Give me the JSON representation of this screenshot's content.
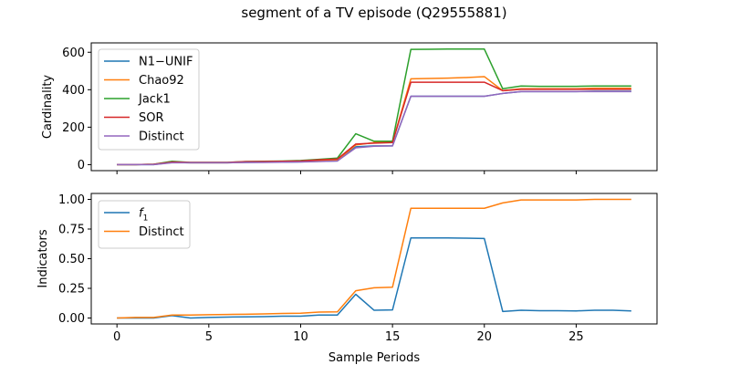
{
  "figure": {
    "title": "segment of a TV episode (Q29555881)",
    "colors": {
      "blue": "#1f77b4",
      "orange": "#ff7f0e",
      "green": "#2ca02c",
      "red": "#d62728",
      "purple": "#9467bd"
    }
  },
  "chart_data": [
    {
      "type": "line",
      "xlabel": "",
      "ylabel": "Cardinality",
      "xlim": [
        -1.4,
        29.4
      ],
      "ylim": [
        -32,
        650
      ],
      "xticks": [
        0,
        5,
        10,
        15,
        20,
        25
      ],
      "xtick_labels_visible": false,
      "yticks": [
        0,
        200,
        400,
        600
      ],
      "ytick_labels": [
        "0",
        "200",
        "400",
        "600"
      ],
      "legend_position": "upper left",
      "x": [
        0,
        1,
        2,
        3,
        4,
        5,
        6,
        7,
        8,
        9,
        10,
        11,
        12,
        13,
        14,
        15,
        16,
        17,
        18,
        19,
        20,
        21,
        22,
        23,
        24,
        25,
        26,
        27,
        28
      ],
      "series": [
        {
          "name": "N1−UNIF",
          "color": "#1f77b4",
          "values": [
            0,
            0,
            0,
            12,
            10,
            10,
            10,
            12,
            13,
            13,
            15,
            18,
            20,
            95,
            100,
            100,
            365,
            365,
            365,
            365,
            365,
            380,
            390,
            390,
            390,
            390,
            392,
            392,
            392
          ]
        },
        {
          "name": "Chao92",
          "color": "#ff7f0e",
          "values": [
            0,
            0,
            2,
            12,
            10,
            10,
            10,
            13,
            14,
            15,
            17,
            22,
            25,
            105,
            118,
            118,
            458,
            460,
            462,
            465,
            470,
            395,
            405,
            405,
            405,
            405,
            408,
            408,
            408
          ]
        },
        {
          "name": "Jack1",
          "color": "#2ca02c",
          "values": [
            0,
            0,
            2,
            18,
            12,
            12,
            12,
            17,
            18,
            19,
            22,
            28,
            35,
            165,
            125,
            125,
            615,
            616,
            617,
            617,
            617,
            405,
            420,
            418,
            418,
            418,
            420,
            420,
            420
          ]
        },
        {
          "name": "SOR",
          "color": "#d62728",
          "values": [
            0,
            0,
            2,
            14,
            12,
            12,
            12,
            16,
            17,
            18,
            20,
            26,
            30,
            110,
            115,
            118,
            440,
            440,
            440,
            440,
            440,
            395,
            402,
            402,
            402,
            402,
            402,
            402,
            402
          ]
        },
        {
          "name": "Distinct",
          "color": "#9467bd",
          "values": [
            0,
            0,
            0,
            10,
            10,
            10,
            10,
            12,
            12,
            13,
            14,
            17,
            20,
            90,
            98,
            100,
            365,
            365,
            365,
            365,
            365,
            380,
            390,
            390,
            390,
            390,
            390,
            390,
            390
          ]
        }
      ]
    },
    {
      "type": "line",
      "xlabel": "Sample Periods",
      "ylabel": "Indicators",
      "xlim": [
        -1.4,
        29.4
      ],
      "ylim": [
        -0.05,
        1.05
      ],
      "xticks": [
        0,
        5,
        10,
        15,
        20,
        25
      ],
      "xtick_labels": [
        "0",
        "5",
        "10",
        "15",
        "20",
        "25"
      ],
      "yticks": [
        0.0,
        0.25,
        0.5,
        0.75,
        1.0
      ],
      "ytick_labels": [
        "0.00",
        "0.25",
        "0.50",
        "0.75",
        "1.00"
      ],
      "legend_position": "upper left",
      "x": [
        0,
        1,
        2,
        3,
        4,
        5,
        6,
        7,
        8,
        9,
        10,
        11,
        12,
        13,
        14,
        15,
        16,
        17,
        18,
        19,
        20,
        21,
        22,
        23,
        24,
        25,
        26,
        27,
        28
      ],
      "series": [
        {
          "name": "f",
          "name_subscript": "1",
          "color": "#1f77b4",
          "values": [
            0.0,
            0.0,
            0.0,
            0.02,
            0.0,
            0.005,
            0.008,
            0.01,
            0.012,
            0.015,
            0.015,
            0.025,
            0.025,
            0.2,
            0.065,
            0.068,
            0.675,
            0.675,
            0.675,
            0.673,
            0.67,
            0.055,
            0.065,
            0.062,
            0.062,
            0.06,
            0.065,
            0.065,
            0.06
          ]
        },
        {
          "name": "Distinct",
          "color": "#ff7f0e",
          "values": [
            0.0,
            0.005,
            0.005,
            0.025,
            0.025,
            0.028,
            0.03,
            0.032,
            0.035,
            0.038,
            0.04,
            0.05,
            0.052,
            0.23,
            0.255,
            0.26,
            0.925,
            0.925,
            0.925,
            0.925,
            0.925,
            0.97,
            0.995,
            0.995,
            0.995,
            0.995,
            1.0,
            1.0,
            1.0
          ]
        }
      ]
    }
  ]
}
